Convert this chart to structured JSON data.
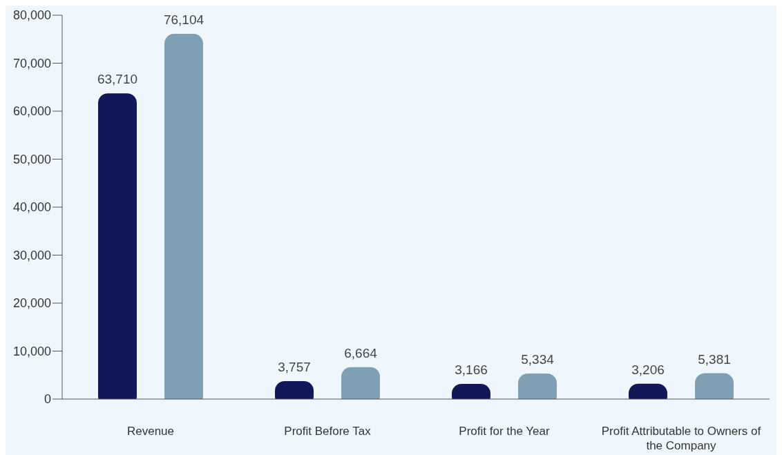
{
  "chart_data": {
    "type": "bar",
    "categories": [
      "Revenue",
      "Profit Before Tax",
      "Profit for the Year",
      "Profit Attributable to Owners of the Company"
    ],
    "series": [
      {
        "color": "#12175a",
        "values": [
          63710,
          3757,
          3166,
          3206
        ],
        "value_labels": [
          "63,710",
          "3,757",
          "3,166",
          "3,206"
        ]
      },
      {
        "color": "#7f9fb5",
        "values": [
          76104,
          6664,
          5334,
          5381
        ],
        "value_labels": [
          "76,104",
          "6,664",
          "5,334",
          "5,381"
        ]
      }
    ],
    "ylim": [
      0,
      80000
    ],
    "yticks": [
      0,
      {
        "value": 10000,
        "label": "10,000"
      },
      {
        "value": 20000,
        "label": "20,000"
      },
      {
        "value": 30000,
        "label": "30,000"
      },
      {
        "value": 40000,
        "label": "40,000"
      },
      {
        "value": 50000,
        "label": "50,000"
      },
      {
        "value": 60000,
        "label": "60,000"
      },
      {
        "value": 70000,
        "label": "70,000"
      },
      {
        "value": 80000,
        "label": "80,000"
      }
    ],
    "grid": false,
    "legend": false
  }
}
